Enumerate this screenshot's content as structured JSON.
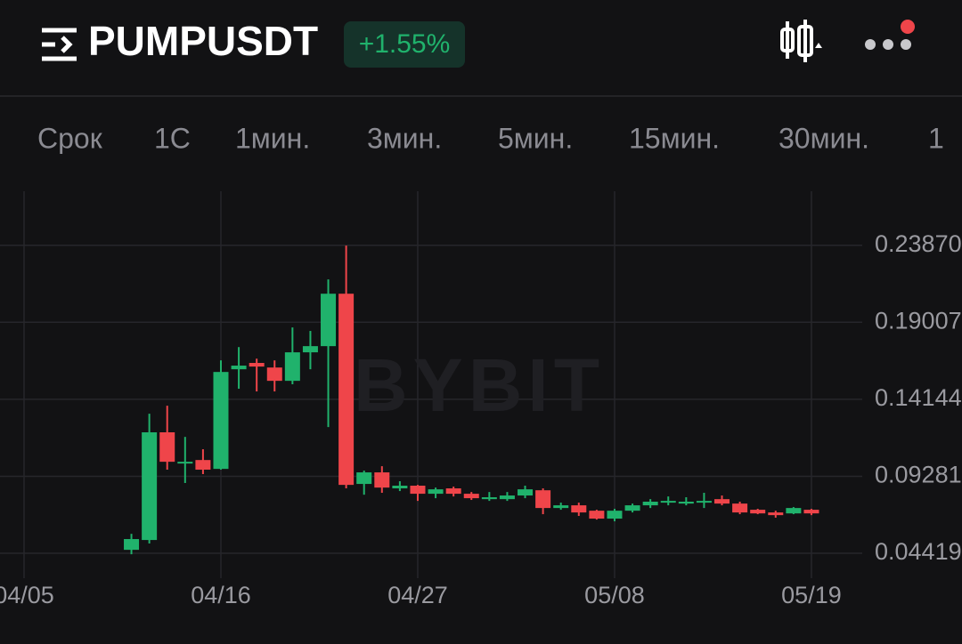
{
  "header": {
    "title": "PUMPUSDT",
    "change": "+1.55%"
  },
  "tabs": [
    "Срок",
    "1С",
    "1мин.",
    "3мин.",
    "5мин.",
    "15мин.",
    "30мин.",
    "1"
  ],
  "chart_data": {
    "type": "candlestick",
    "watermark": "BYBIT",
    "up_color": "#20b26c",
    "down_color": "#ef454a",
    "x": [
      "04/11",
      "04/12",
      "04/13",
      "04/14",
      "04/15",
      "04/16",
      "04/17",
      "04/18",
      "04/19",
      "04/20",
      "04/21",
      "04/22",
      "04/23",
      "04/24",
      "04/25",
      "04/26",
      "04/27",
      "04/28",
      "04/29",
      "04/30",
      "05/01",
      "05/02",
      "05/03",
      "05/04",
      "05/05",
      "05/06",
      "05/07",
      "05/08",
      "05/09",
      "05/10",
      "05/11",
      "05/12",
      "05/13",
      "05/14",
      "05/15",
      "05/16",
      "05/17",
      "05/18",
      "05/19"
    ],
    "open": [
      0.0464,
      0.0526,
      0.1206,
      0.1014,
      0.1031,
      0.0975,
      0.1604,
      0.1644,
      0.1615,
      0.1531,
      0.1711,
      0.175,
      0.2081,
      0.088,
      0.0953,
      0.0852,
      0.0869,
      0.0818,
      0.0852,
      0.0818,
      0.0784,
      0.0784,
      0.0807,
      0.084,
      0.0728,
      0.0745,
      0.0711,
      0.0661,
      0.0711,
      0.0745,
      0.0762,
      0.0756,
      0.0768,
      0.0784,
      0.0756,
      0.0717,
      0.07,
      0.0694,
      0.0717
    ],
    "high": [
      0.0565,
      0.1323,
      0.1374,
      0.1177,
      0.1099,
      0.166,
      0.1744,
      0.1671,
      0.166,
      0.1868,
      0.1846,
      0.2171,
      0.2385,
      0.0964,
      0.0992,
      0.0897,
      0.0874,
      0.0857,
      0.0863,
      0.0829,
      0.0829,
      0.0829,
      0.0869,
      0.0852,
      0.0762,
      0.0762,
      0.0717,
      0.0723,
      0.0756,
      0.0784,
      0.0801,
      0.0796,
      0.0824,
      0.0807,
      0.0768,
      0.0723,
      0.0711,
      0.0734,
      0.0723
    ],
    "low": [
      0.0436,
      0.0504,
      0.097,
      0.0886,
      0.0942,
      0.097,
      0.1481,
      0.1464,
      0.1464,
      0.1509,
      0.1604,
      0.1239,
      0.0852,
      0.0812,
      0.0824,
      0.0835,
      0.0773,
      0.079,
      0.0801,
      0.0779,
      0.0773,
      0.0773,
      0.079,
      0.0689,
      0.0717,
      0.0678,
      0.0655,
      0.0644,
      0.07,
      0.0728,
      0.0745,
      0.0745,
      0.0728,
      0.0745,
      0.0689,
      0.0689,
      0.0667,
      0.0689,
      0.0683
    ],
    "close": [
      0.0532,
      0.1206,
      0.102,
      0.102,
      0.097,
      0.1587,
      0.1627,
      0.1621,
      0.1531,
      0.1711,
      0.175,
      0.2081,
      0.0874,
      0.0953,
      0.0857,
      0.0869,
      0.0818,
      0.0846,
      0.0818,
      0.079,
      0.0796,
      0.0807,
      0.0846,
      0.0728,
      0.0745,
      0.07,
      0.0661,
      0.0711,
      0.0745,
      0.0768,
      0.0773,
      0.0768,
      0.0773,
      0.0756,
      0.07,
      0.0694,
      0.0683,
      0.0728,
      0.0694
    ],
    "ylim": [
      0.0285,
      0.2728
    ],
    "yticks": [
      0.04419,
      0.09281,
      0.14144,
      0.19007,
      {
        "value": 0.2387,
        "label": "0.23870"
      }
    ],
    "xticks": [
      "04/05",
      "04/16",
      "04/27",
      "05/08",
      "05/19"
    ],
    "grid": true
  }
}
